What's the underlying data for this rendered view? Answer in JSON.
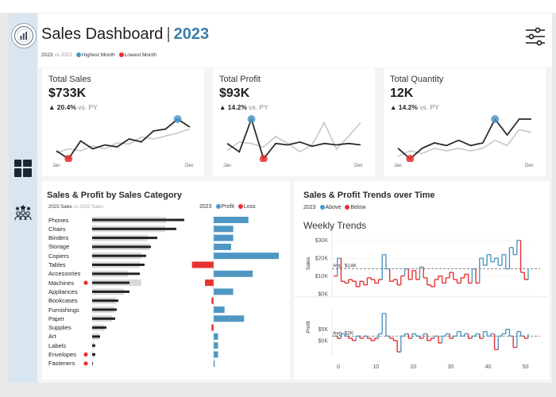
{
  "header": {
    "title": "Sales Dashboard",
    "separator": "|",
    "year": "2023",
    "subtitle_prefix": "2023",
    "subtitle_vs": "vs",
    "subtitle_compare": "2022",
    "legend_highest": "Highest Month",
    "legend_lowest": "Lowest Month"
  },
  "colors": {
    "accent": "#3a7ea8",
    "highest": "#4e97c3",
    "lowest": "#e8312f",
    "sidebar": "#d8e6f1"
  },
  "icons": {
    "logo": "logo-badge-icon",
    "dashboard": "dashboard-grid-icon",
    "team": "team-icon",
    "filter": "sliders-filter-icon"
  },
  "kpis": [
    {
      "label": "Total Sales",
      "value": "$733K",
      "change": "20.4%",
      "vs": "vs. PY",
      "axis_start": "Jan",
      "axis_end": "Dec",
      "current": [
        28,
        20,
        38,
        30,
        34,
        32,
        40,
        37,
        48,
        50,
        60,
        52
      ],
      "previous": [
        26,
        30,
        28,
        33,
        30,
        36,
        35,
        42,
        40,
        43,
        46,
        50
      ]
    },
    {
      "label": "Total Profit",
      "value": "$93K",
      "change": "14.2%",
      "vs": "vs. PY",
      "axis_start": "Jan",
      "axis_end": "Dec",
      "current": [
        40,
        28,
        75,
        18,
        40,
        38,
        42,
        36,
        40,
        38,
        40,
        38
      ],
      "previous": [
        30,
        42,
        40,
        35,
        50,
        40,
        28,
        38,
        70,
        32,
        50,
        70
      ]
    },
    {
      "label": "Total Quantity",
      "value": "12K",
      "change": "14.2%",
      "vs": "vs. PY",
      "axis_start": "Jan",
      "axis_end": "Dec",
      "current": [
        38,
        30,
        38,
        42,
        40,
        44,
        40,
        42,
        60,
        48,
        60,
        60
      ],
      "previous": [
        32,
        36,
        34,
        38,
        36,
        38,
        36,
        38,
        44,
        40,
        52,
        50
      ]
    }
  ],
  "category_panel": {
    "title": "Sales & Profit by Sales Category",
    "sales_legend_current": "2023 Sales",
    "sales_legend_vs": "vs",
    "sales_legend_prev": "2022 Sales",
    "profit_legend_year": "2023",
    "profit_legend_profit": "Profit",
    "profit_legend_loss": "Loss"
  },
  "chart_data": [
    {
      "type": "bar",
      "title": "Sales & Profit by Sales Category",
      "categories": [
        "Phones",
        "Chairs",
        "Binders",
        "Storage",
        "Copiers",
        "Tables",
        "Accessories",
        "Machines",
        "Appliances",
        "Bookcases",
        "Furnishings",
        "Paper",
        "Supplies",
        "Art",
        "Labels",
        "Envelopes",
        "Fasteners"
      ],
      "series": [
        {
          "name": "2023 Sales",
          "values": [
            116,
            106,
            82,
            74,
            68,
            66,
            60,
            47,
            47,
            33,
            31,
            29,
            18,
            10,
            4,
            4,
            1
          ]
        },
        {
          "name": "2022 Sales",
          "values": [
            93,
            92,
            70,
            72,
            62,
            60,
            45,
            62,
            40,
            30,
            28,
            25,
            15,
            9,
            3,
            3,
            1
          ]
        },
        {
          "name": "2023 Profit",
          "values": [
            16,
            9,
            9,
            8,
            30,
            -10,
            18,
            -4,
            9,
            -1,
            5,
            14,
            -1,
            2,
            2,
            2,
            0.5
          ]
        }
      ],
      "markers": [
        "",
        "",
        "",
        "",
        "",
        "",
        "",
        "red",
        "",
        "",
        "",
        "",
        "",
        "",
        "",
        "red",
        "red"
      ]
    },
    {
      "type": "line",
      "title": "Sales & Profit Trends over Time",
      "subtitle": "Weekly Trends",
      "xlabel": "",
      "x_ticks": [
        0,
        10,
        20,
        30,
        40,
        50
      ],
      "legend_year": "2023",
      "legend_above": "Above",
      "legend_below": "Below",
      "sales": {
        "ylabel": "Sales",
        "ticks": [
          "$30K",
          "$20K",
          "$10K",
          "$0K"
        ],
        "avg_label": "Avg. $14K",
        "avg": 14,
        "values": [
          10,
          20,
          7,
          6,
          8,
          7,
          4,
          7,
          5,
          9,
          8,
          6,
          8,
          22,
          14,
          7,
          8,
          5,
          10,
          14,
          8,
          13,
          8,
          15,
          9,
          5,
          4,
          8,
          10,
          6,
          9,
          12,
          8,
          6,
          9,
          11,
          6,
          14,
          6,
          20,
          16,
          22,
          18,
          20,
          16,
          22,
          14,
          26,
          22,
          30,
          12,
          8,
          14
        ]
      },
      "profit": {
        "ylabel": "Profit",
        "ticks": [
          "$5K",
          "$0K"
        ],
        "avg_label": "Avg. $2K",
        "avg": 2,
        "values": [
          2,
          1,
          3,
          2,
          1,
          0,
          2,
          1,
          2,
          1,
          0,
          1,
          3,
          12,
          2,
          1,
          0,
          -5,
          2,
          3,
          1,
          3,
          2,
          1,
          3,
          0,
          1,
          2,
          -1,
          2,
          3,
          1,
          2,
          4,
          2,
          3,
          1,
          2,
          3,
          1,
          4,
          2,
          3,
          -4,
          2,
          3,
          5,
          2,
          -3,
          4,
          2,
          1,
          3
        ]
      }
    }
  ]
}
